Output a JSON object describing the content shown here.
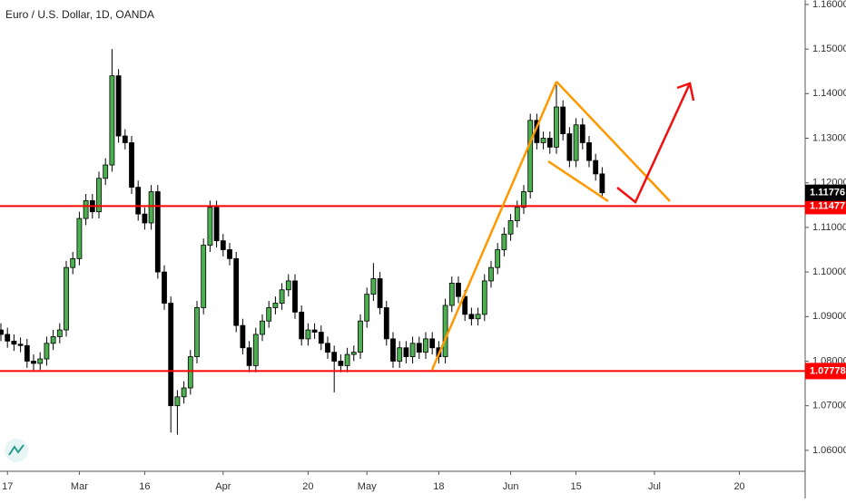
{
  "chart_data": {
    "type": "candlestick",
    "title": "Euro / U.S. Dollar, 1D, OANDA",
    "up_color": "#4caf50",
    "down_color": "#000000",
    "open": [
      1.087,
      1.086,
      1.0845,
      1.0838,
      1.0835,
      1.08,
      1.0795,
      1.0805,
      1.084,
      1.0855,
      1.087,
      1.101,
      1.103,
      1.112,
      1.116,
      1.1135,
      1.121,
      1.124,
      1.144,
      1.1305,
      1.129,
      1.119,
      1.113,
      1.111,
      1.118,
      1.1,
      1.093,
      1.07,
      1.072,
      1.074,
      1.081,
      1.092,
      1.106,
      1.1145,
      1.107,
      1.105,
      1.103,
      1.088,
      1.083,
      1.079,
      1.086,
      1.089,
      1.092,
      1.093,
      1.096,
      1.098,
      1.091,
      1.085,
      1.087,
      1.0865,
      1.084,
      1.082,
      1.08,
      1.079,
      1.0815,
      1.082,
      1.089,
      1.095,
      1.0985,
      1.092,
      1.085,
      1.08,
      1.083,
      1.081,
      1.084,
      1.082,
      1.085,
      1.083,
      1.081,
      1.0925,
      1.0975,
      1.0945,
      1.0905,
      1.0895,
      1.0905,
      1.098,
      1.101,
      1.105,
      1.1085,
      1.1115,
      1.1145,
      1.118,
      1.134,
      1.129,
      1.13,
      1.128,
      1.137,
      1.131,
      1.125,
      1.133,
      1.129,
      1.125,
      1.122
    ],
    "high": [
      1.0885,
      1.0875,
      1.086,
      1.0853,
      1.085,
      1.0815,
      1.082,
      1.0855,
      1.087,
      1.0885,
      1.1025,
      1.1045,
      1.1135,
      1.1175,
      1.1175,
      1.1225,
      1.1255,
      1.15,
      1.1455,
      1.132,
      1.1305,
      1.1205,
      1.1145,
      1.1195,
      1.1195,
      1.1015,
      1.0945,
      1.0735,
      1.0755,
      1.0825,
      1.0935,
      1.1075,
      1.116,
      1.116,
      1.1085,
      1.1065,
      1.1045,
      1.0895,
      1.0845,
      1.0875,
      1.0905,
      1.0935,
      1.0945,
      1.0975,
      1.0995,
      1.0995,
      1.0925,
      1.0885,
      1.0885,
      1.088,
      1.0855,
      1.0835,
      1.0815,
      1.083,
      1.0835,
      1.0905,
      1.0965,
      1.102,
      1.1,
      1.0935,
      1.0865,
      1.0845,
      1.0845,
      1.0855,
      1.0855,
      1.0865,
      1.0865,
      1.0845,
      1.094,
      1.099,
      1.099,
      1.096,
      1.092,
      1.092,
      1.0995,
      1.1025,
      1.1065,
      1.11,
      1.113,
      1.116,
      1.1195,
      1.1355,
      1.1355,
      1.1315,
      1.1315,
      1.142,
      1.1385,
      1.1325,
      1.1345,
      1.1345,
      1.1305,
      1.1265,
      1.1235
    ],
    "low": [
      1.0845,
      1.083,
      1.0823,
      1.082,
      1.0785,
      1.078,
      1.078,
      1.079,
      1.0825,
      1.084,
      1.0855,
      1.0995,
      1.1015,
      1.1105,
      1.112,
      1.112,
      1.1195,
      1.1225,
      1.129,
      1.1275,
      1.1175,
      1.1115,
      1.1095,
      1.1095,
      1.0985,
      1.0915,
      1.064,
      1.0635,
      1.0705,
      1.0725,
      1.0795,
      1.0905,
      1.1045,
      1.1055,
      1.1035,
      1.1015,
      1.0865,
      1.0815,
      1.0775,
      1.0775,
      1.0845,
      1.0875,
      1.0905,
      1.0915,
      1.0945,
      1.0895,
      1.0835,
      1.0835,
      1.085,
      1.0825,
      1.0805,
      1.073,
      1.0775,
      1.0775,
      1.08,
      1.0805,
      1.0875,
      1.0935,
      1.0905,
      1.0835,
      1.0785,
      1.0785,
      1.0795,
      1.0795,
      1.0805,
      1.0805,
      1.0815,
      1.0795,
      1.0795,
      1.091,
      1.093,
      1.089,
      1.088,
      1.088,
      1.089,
      1.0965,
      1.0995,
      1.1035,
      1.107,
      1.11,
      1.113,
      1.1165,
      1.1275,
      1.1275,
      1.1265,
      1.1265,
      1.1295,
      1.1235,
      1.1235,
      1.1275,
      1.1235,
      1.1205,
      1.1165
    ],
    "close": [
      1.086,
      1.0845,
      1.0838,
      1.0835,
      1.08,
      1.0795,
      1.0805,
      1.084,
      1.0855,
      1.087,
      1.101,
      1.103,
      1.112,
      1.116,
      1.1135,
      1.121,
      1.124,
      1.144,
      1.1305,
      1.129,
      1.119,
      1.113,
      1.111,
      1.118,
      1.1,
      1.093,
      1.07,
      1.072,
      1.074,
      1.081,
      1.092,
      1.106,
      1.1145,
      1.107,
      1.105,
      1.103,
      1.088,
      1.083,
      1.079,
      1.086,
      1.089,
      1.092,
      1.093,
      1.096,
      1.098,
      1.091,
      1.085,
      1.087,
      1.0865,
      1.084,
      1.082,
      1.08,
      1.079,
      1.0815,
      1.082,
      1.089,
      1.095,
      1.0985,
      1.092,
      1.085,
      1.08,
      1.083,
      1.081,
      1.084,
      1.082,
      1.085,
      1.083,
      1.081,
      1.0925,
      1.0975,
      1.0945,
      1.0905,
      1.0895,
      1.0905,
      1.098,
      1.101,
      1.105,
      1.1085,
      1.1115,
      1.1145,
      1.118,
      1.134,
      1.129,
      1.13,
      1.128,
      1.137,
      1.131,
      1.125,
      1.133,
      1.129,
      1.125,
      1.122,
      1.11776
    ],
    "xlim": [
      -0.14,
      123.06
    ],
    "xticks": [
      {
        "value": 1,
        "label": "17"
      },
      {
        "value": 12,
        "label": "Mar"
      },
      {
        "value": 22,
        "label": "16"
      },
      {
        "value": 34,
        "label": "Apr"
      },
      {
        "value": 47,
        "label": "20"
      },
      {
        "value": 56,
        "label": "May"
      },
      {
        "value": 67,
        "label": "18"
      },
      {
        "value": 78,
        "label": "Jun"
      },
      {
        "value": 88,
        "label": "15"
      },
      {
        "value": 100,
        "label": "Jul"
      },
      {
        "value": 113,
        "label": "20"
      }
    ],
    "ylim": [
      1.0553,
      1.161
    ],
    "yticks": [
      {
        "value": 1.06,
        "label": "1.06000"
      },
      {
        "value": 1.07,
        "label": "1.07000"
      },
      {
        "value": 1.08,
        "label": "1.08000"
      },
      {
        "value": 1.09,
        "label": "1.09000"
      },
      {
        "value": 1.1,
        "label": "1.10000"
      },
      {
        "value": 1.11,
        "label": "1.11000"
      },
      {
        "value": 1.12,
        "label": "1.12000"
      },
      {
        "value": 1.13,
        "label": "1.13000"
      },
      {
        "value": 1.14,
        "label": "1.14000"
      },
      {
        "value": 1.15,
        "label": "1.15000"
      },
      {
        "value": 1.16,
        "label": "1.16000"
      }
    ],
    "hlines": [
      {
        "value": 1.11477,
        "color": "#ff0000"
      },
      {
        "value": 1.07778,
        "color": "#ff0000"
      }
    ],
    "grid": false
  }
}
